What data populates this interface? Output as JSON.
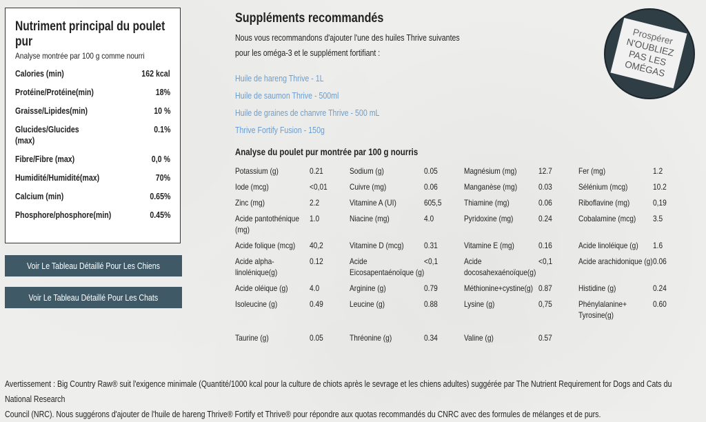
{
  "nutrient_box": {
    "title": "Nutriment principal du poulet pur",
    "subtitle": "Analyse montrée par 100 g comme nourri",
    "rows": [
      {
        "label": "Calories (min)",
        "value": "162 kcal"
      },
      {
        "label": "Protéine/Protéine(min)",
        "value": "18%"
      },
      {
        "label": "Graisse/Lipides(min)",
        "value": "10 %"
      },
      {
        "label": "Glucides/Glucides (max)",
        "value": "0.1%"
      },
      {
        "label": "Fibre/Fibre (max)",
        "value": "0,0 %"
      },
      {
        "label": "Humidité/Humidité(max)",
        "value": "70%"
      },
      {
        "label": "Calcium (min)",
        "value": "0.65%"
      },
      {
        "label": "Phosphore/phosphore(min)",
        "value": "0.45%"
      }
    ]
  },
  "buttons": {
    "dogs": "Voir Le Tableau Détaillé Pour Les Chiens",
    "cats": "Voir Le Tableau Détaillé Pour Les Chats"
  },
  "supplements": {
    "title": "Suppléments recommandés",
    "intro_line1": "Nous vous recommandons d'ajouter l'une des huiles Thrive suivantes",
    "intro_line2": "pour les oméga-3 et le supplément fortifiant :",
    "links": [
      "Huile de hareng Thrive - 1L",
      "Huile de saumon Thrive - 500ml",
      "Huile de graines de chanvre Thrive - 500 mL",
      "Thrive Fortify Fusion - 150g"
    ]
  },
  "analysis": {
    "title": "Analyse du poulet pur montrée par 100 g nourris",
    "rows": [
      [
        [
          "Potassium (g)",
          "0.21"
        ],
        [
          "Sodium (g)",
          "0.05"
        ],
        [
          "Magnésium (mg)",
          "12.7"
        ],
        [
          "Fer (mg)",
          "1.2"
        ]
      ],
      [
        [
          "Iode (mcg)",
          "<0,01"
        ],
        [
          "Cuivre (mg)",
          "0.06"
        ],
        [
          "Manganèse (mg)",
          "0.03"
        ],
        [
          "Sélénium (mcg)",
          "10.2"
        ]
      ],
      [
        [
          "Zinc (mg)",
          "2.2"
        ],
        [
          "Vitamine A (UI)",
          "605,5"
        ],
        [
          "Thiamine (mg)",
          "0.06"
        ],
        [
          "Riboflavine (mg)",
          "0,19"
        ]
      ],
      [
        [
          "Acide pantothénique (mg)",
          "1.0"
        ],
        [
          "Niacine (mg)",
          "4.0"
        ],
        [
          "Pyridoxine (mg)",
          "0.24"
        ],
        [
          "Cobalamine (mcg)",
          "3.5"
        ]
      ],
      [
        [
          "Acide folique (mcg)",
          "40,2"
        ],
        [
          "Vitamine D (mcg)",
          "0.31"
        ],
        [
          "Vitamine E (mg)",
          "0.16"
        ],
        [
          "Acide linoléique (g)",
          "1.6"
        ]
      ],
      [
        [
          "Acide alpha-linolénique(g)",
          "0.12"
        ],
        [
          "Acide Eicosapentaénoïque (g)",
          "<0,1"
        ],
        [
          "Acide docosahexaénoïque(g)",
          "<0,1"
        ],
        [
          "Acide arachidonique (g)",
          "0.06"
        ]
      ],
      [
        [
          "Acide oléique (g)",
          "4.0"
        ],
        [
          "Arginine (g)",
          "0.79"
        ],
        [
          "Méthionine+cystine(g)",
          "0.87"
        ],
        [
          "Histidine (g)",
          "0.24"
        ]
      ],
      [
        [
          "Isoleucine (g)",
          "0.49"
        ],
        [
          "Leucine (g)",
          "0.88"
        ],
        [
          "Lysine (g)",
          "0,75"
        ],
        [
          "Phénylalanine+ Tyrosine(g)",
          "0.60"
        ]
      ],
      [
        [
          "Taurine (g)",
          "0.05"
        ],
        [
          "Thréonine (g)",
          "0.34"
        ],
        [
          "Valine (g)",
          "0.57"
        ],
        [
          "",
          ""
        ]
      ]
    ]
  },
  "badge": {
    "line1": "Prospérer",
    "line2": "N'OUBLIEZ",
    "line3": "PAS LES",
    "line4": "OMÉGAS"
  },
  "footnote": {
    "line1": "Avertissement : Big Country Raw® suit l'exigence minimale (Quantité/1000 kcal pour la culture de chiots après le sevrage et les chiens adultes) suggérée par The Nutrient Requirement for Dogs and Cats du National Research",
    "line2": "Council (NRC). Nous suggérons d'ajouter de l'huile de hareng Thrive® Fortify et Thrive® pour répondre aux quotas recommandés du CNRC avec des formules de mélanges et de purs."
  }
}
